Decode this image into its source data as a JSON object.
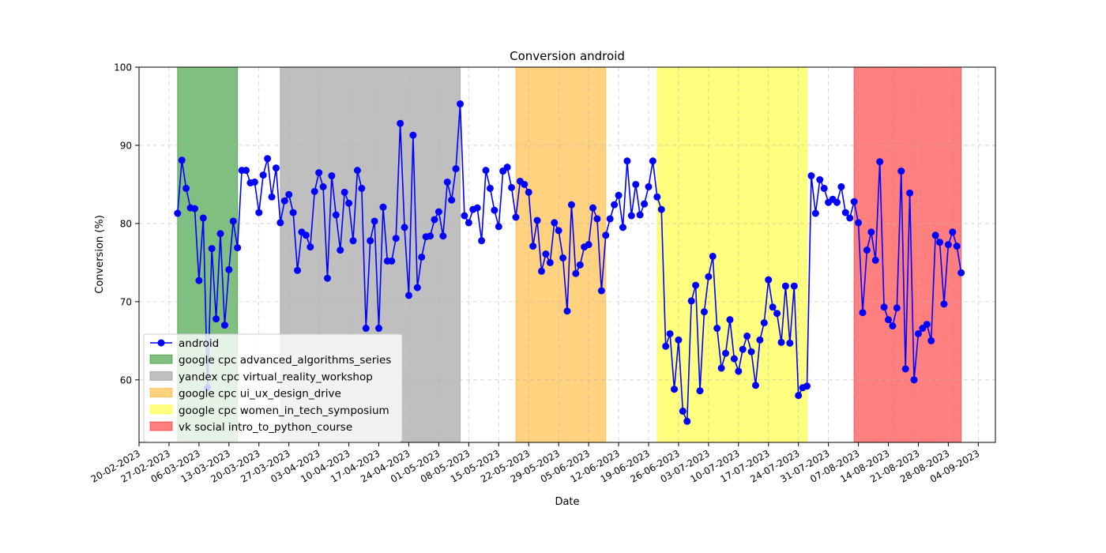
{
  "chart_data": {
    "type": "line",
    "title": "Conversion android",
    "xlabel": "Date",
    "ylabel": "Conversion (%)",
    "ylim": [
      52,
      100
    ],
    "xlim": [
      "2023-02-20",
      "2023-09-08"
    ],
    "yticks": [
      60,
      70,
      80,
      90,
      100
    ],
    "xticks": [
      "20-02-2023",
      "27-02-2023",
      "06-03-2023",
      "13-03-2023",
      "20-03-2023",
      "27-03-2023",
      "03-04-2023",
      "10-04-2023",
      "17-04-2023",
      "24-04-2023",
      "01-05-2023",
      "08-05-2023",
      "15-05-2023",
      "22-05-2023",
      "29-05-2023",
      "05-06-2023",
      "12-06-2023",
      "19-06-2023",
      "26-06-2023",
      "03-07-2023",
      "10-07-2023",
      "17-07-2023",
      "24-07-2023",
      "31-07-2023",
      "07-08-2023",
      "14-08-2023",
      "21-08-2023",
      "28-08-2023",
      "04-09-2023"
    ],
    "grid": true,
    "legend_position": "lower-left",
    "series": [
      {
        "name": "android",
        "color": "#0000ff",
        "x_start": "2023-03-01",
        "x_step_days": 1,
        "values": [
          81.3,
          88.1,
          84.5,
          82.0,
          81.9,
          72.7,
          80.7,
          59.0,
          76.8,
          67.8,
          78.7,
          67.0,
          74.1,
          80.3,
          76.9,
          86.8,
          86.8,
          85.2,
          85.3,
          81.4,
          86.2,
          88.3,
          83.4,
          87.1,
          80.1,
          82.9,
          83.7,
          81.4,
          74.0,
          78.9,
          78.5,
          77.0,
          84.1,
          86.5,
          84.7,
          73.0,
          86.1,
          81.1,
          76.6,
          84.0,
          82.6,
          77.8,
          86.8,
          84.5,
          66.6,
          77.8,
          80.3,
          66.6,
          82.1,
          75.2,
          75.2,
          78.1,
          92.8,
          79.5,
          70.8,
          91.3,
          71.8,
          75.7,
          78.3,
          78.4,
          80.5,
          81.5,
          78.4,
          85.3,
          83.0,
          87.0,
          95.3,
          81.0,
          80.1,
          81.8,
          82.0,
          77.8,
          86.8,
          84.5,
          81.7,
          79.6,
          86.7,
          87.2,
          84.6,
          80.8,
          85.4,
          85.0,
          84.0,
          77.1,
          80.4,
          73.9,
          76.1,
          75.0,
          80.1,
          79.1,
          75.6,
          68.8,
          82.4,
          73.6,
          74.7,
          77.0,
          77.3,
          82.0,
          80.6,
          71.4,
          78.5,
          80.6,
          82.4,
          83.6,
          79.5,
          88.0,
          81.0,
          85.0,
          81.1,
          82.5,
          84.7,
          88.0,
          83.4,
          81.8,
          64.3,
          65.9,
          58.8,
          65.1,
          56.0,
          54.7,
          70.1,
          72.1,
          58.6,
          68.7,
          73.2,
          75.8,
          66.6,
          61.5,
          63.4,
          67.7,
          62.7,
          61.1,
          63.9,
          65.6,
          63.6,
          59.3,
          65.1,
          67.3,
          72.8,
          69.3,
          68.5,
          64.8,
          72.0,
          64.7,
          72.0,
          58.0,
          59.0,
          59.2,
          86.1,
          81.3,
          85.6,
          84.5,
          82.7,
          83.1,
          82.7,
          84.7,
          81.4,
          80.7,
          82.8,
          80.1,
          68.6,
          76.6,
          78.9,
          75.3,
          87.9,
          69.3,
          67.7,
          66.9,
          69.2,
          86.7,
          61.4,
          83.9,
          60.0,
          65.9,
          66.6,
          67.1,
          65.0,
          78.5,
          77.6,
          69.7,
          77.3,
          78.9,
          77.1,
          73.7
        ]
      }
    ],
    "shaded_periods": [
      {
        "name": "google cpc advanced_algorithms_series",
        "start": "2023-03-01",
        "end": "2023-03-15",
        "color": "#008000"
      },
      {
        "name": "yandex cpc virtual_reality_workshop",
        "start": "2023-03-25",
        "end": "2023-05-06",
        "color": "#808080"
      },
      {
        "name": "google cpc ui_ux_design_drive",
        "start": "2023-05-19",
        "end": "2023-06-09",
        "color": "#ffa500"
      },
      {
        "name": "google cpc women_in_tech_symposium",
        "start": "2023-06-21",
        "end": "2023-07-26",
        "color": "#ffff00"
      },
      {
        "name": "vk social intro_to_python_course",
        "start": "2023-08-06",
        "end": "2023-08-31",
        "color": "#ff0000"
      }
    ]
  }
}
